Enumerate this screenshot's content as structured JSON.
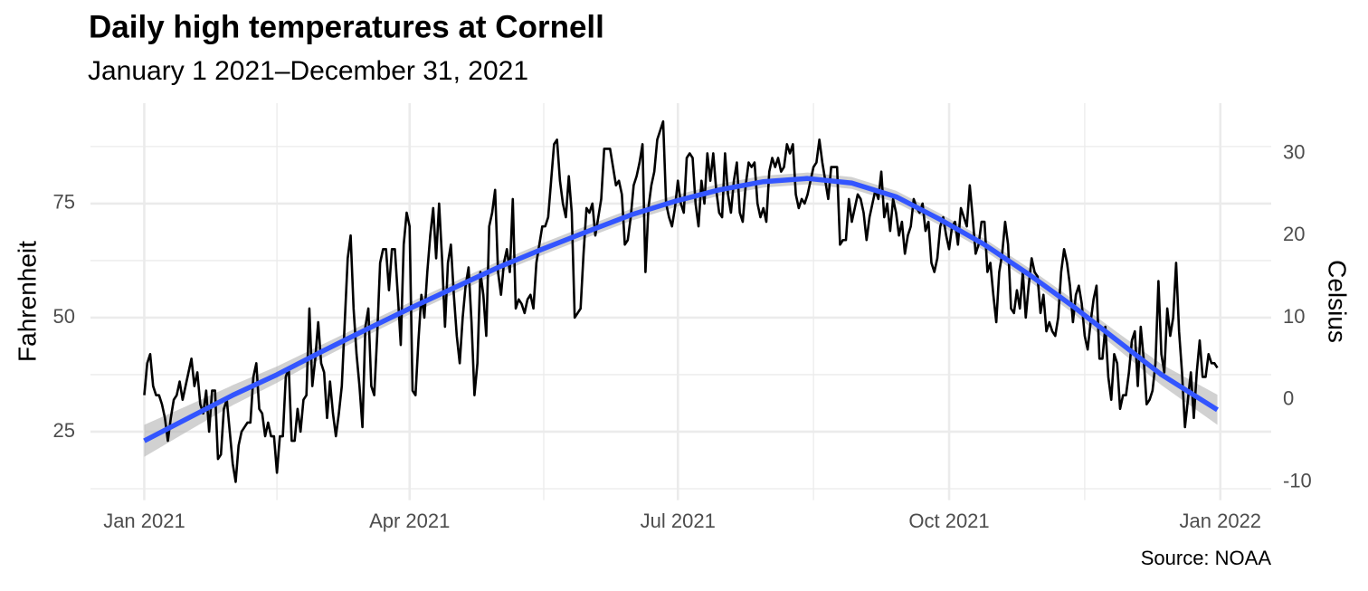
{
  "chart_data": {
    "type": "line",
    "title": "Daily high temperatures at Cornell",
    "subtitle": "January 1 2021–December 31, 2021",
    "caption": "Source: NOAA",
    "ylabel": "Fahrenheit",
    "y2label": "Celsius",
    "x": [
      0,
      1,
      2,
      3,
      4,
      5,
      6,
      7,
      8,
      9,
      10,
      11,
      12,
      13,
      14,
      15,
      16,
      17,
      18,
      19,
      20,
      21,
      22,
      23,
      24,
      25,
      26,
      27,
      28,
      29,
      30,
      31,
      32,
      33,
      34,
      35,
      36,
      37,
      38,
      39,
      40,
      41,
      42,
      43,
      44,
      45,
      46,
      47,
      48,
      49,
      50,
      51,
      52,
      53,
      54,
      55,
      56,
      57,
      58,
      59,
      60,
      61,
      62,
      63,
      64,
      65,
      66,
      67,
      68,
      69,
      70,
      71,
      72,
      73,
      74,
      75,
      76,
      77,
      78,
      79,
      80,
      81,
      82,
      83,
      84,
      85,
      86,
      87,
      88,
      89,
      90,
      91,
      92,
      93,
      94,
      95,
      96,
      97,
      98,
      99,
      100,
      101,
      102,
      103,
      104,
      105,
      106,
      107,
      108,
      109,
      110,
      111,
      112,
      113,
      114,
      115,
      116,
      117,
      118,
      119,
      120,
      121,
      122,
      123,
      124,
      125,
      126,
      127,
      128,
      129,
      130,
      131,
      132,
      133,
      134,
      135,
      136,
      137,
      138,
      139,
      140,
      141,
      142,
      143,
      144,
      145,
      146,
      147,
      148,
      149,
      150,
      151,
      152,
      153,
      154,
      155,
      156,
      157,
      158,
      159,
      160,
      161,
      162,
      163,
      164,
      165,
      166,
      167,
      168,
      169,
      170,
      171,
      172,
      173,
      174,
      175,
      176,
      177,
      178,
      179,
      180,
      181,
      182,
      183,
      184,
      185,
      186,
      187,
      188,
      189,
      190,
      191,
      192,
      193,
      194,
      195,
      196,
      197,
      198,
      199,
      200,
      201,
      202,
      203,
      204,
      205,
      206,
      207,
      208,
      209,
      210,
      211,
      212,
      213,
      214,
      215,
      216,
      217,
      218,
      219,
      220,
      221,
      222,
      223,
      224,
      225,
      226,
      227,
      228,
      229,
      230,
      231,
      232,
      233,
      234,
      235,
      236,
      237,
      238,
      239,
      240,
      241,
      242,
      243,
      244,
      245,
      246,
      247,
      248,
      249,
      250,
      251,
      252,
      253,
      254,
      255,
      256,
      257,
      258,
      259,
      260,
      261,
      262,
      263,
      264,
      265,
      266,
      267,
      268,
      269,
      270,
      271,
      272,
      273,
      274,
      275,
      276,
      277,
      278,
      279,
      280,
      281,
      282,
      283,
      284,
      285,
      286,
      287,
      288,
      289,
      290,
      291,
      292,
      293,
      294,
      295,
      296,
      297,
      298,
      299,
      300,
      301,
      302,
      303,
      304,
      305,
      306,
      307,
      308,
      309,
      310,
      311,
      312,
      313,
      314,
      315,
      316,
      317,
      318,
      319,
      320,
      321,
      322,
      323,
      324,
      325,
      326,
      327,
      328,
      329,
      330,
      331,
      332,
      333,
      334,
      335,
      336,
      337,
      338,
      339,
      340,
      341,
      342,
      343,
      344,
      345,
      346,
      347,
      348,
      349,
      350,
      351,
      352,
      353,
      354,
      355,
      356,
      357,
      358,
      359,
      360,
      361,
      362,
      363,
      364
    ],
    "series": [
      {
        "color": "#000000",
        "values": [
          33,
          40,
          42,
          35,
          33,
          33,
          31,
          28,
          23,
          28,
          32,
          33,
          36,
          32,
          35,
          38,
          41,
          35,
          38,
          31,
          29,
          34,
          25,
          34,
          34,
          19,
          20,
          30,
          32,
          25,
          18,
          14,
          22,
          25,
          26,
          27,
          27,
          37,
          40,
          30,
          29,
          24,
          27,
          24,
          24,
          16,
          24,
          24,
          37,
          39,
          23,
          23,
          30,
          25,
          32,
          33,
          52,
          35,
          41,
          49,
          40,
          38,
          28,
          36,
          29,
          24,
          29,
          35,
          49,
          63,
          68,
          52,
          42,
          35,
          26,
          48,
          52,
          35,
          33,
          46,
          62,
          65,
          65,
          56,
          65,
          65,
          55,
          44,
          66,
          73,
          70,
          34,
          33,
          45,
          55,
          50,
          60,
          68,
          74,
          63,
          75,
          63,
          48,
          62,
          66,
          55,
          46,
          40,
          50,
          57,
          61,
          49,
          33,
          40,
          60,
          55,
          46,
          70,
          73,
          78,
          60,
          55,
          62,
          65,
          60,
          76,
          52,
          54,
          53,
          51,
          54,
          55,
          52,
          62,
          66,
          70,
          70,
          72,
          80,
          88,
          89,
          80,
          75,
          72,
          81,
          73,
          50,
          51,
          52,
          64,
          74,
          73,
          75,
          68,
          72,
          76,
          87,
          87,
          87,
          83,
          79,
          80,
          77,
          66,
          67,
          72,
          79,
          81,
          84,
          88,
          60,
          74,
          79,
          82,
          89,
          91,
          93,
          75,
          72,
          70,
          74,
          80,
          75,
          73,
          85,
          86,
          85,
          75,
          70,
          80,
          75,
          86,
          80,
          86,
          78,
          73,
          72,
          86,
          77,
          73,
          80,
          84,
          73,
          71,
          79,
          84,
          83,
          84,
          75,
          72,
          74,
          71,
          82,
          85,
          83,
          85,
          82,
          83,
          88,
          86,
          88,
          77,
          74,
          76,
          75,
          77,
          80,
          83,
          84,
          89,
          84,
          80,
          76,
          83,
          83,
          83,
          66,
          67,
          67,
          76,
          71,
          74,
          77,
          76,
          73,
          67,
          72,
          75,
          78,
          76,
          82,
          72,
          75,
          69,
          76,
          73,
          68,
          71,
          64,
          68,
          70,
          76,
          74,
          73,
          75,
          69,
          71,
          62,
          60,
          63,
          70,
          72,
          68,
          65,
          70,
          71,
          66,
          74,
          72,
          70,
          79,
          72,
          64,
          66,
          71,
          71,
          60,
          62,
          55,
          49,
          60,
          64,
          71,
          66,
          52,
          51,
          56,
          52,
          60,
          50,
          57,
          63,
          60,
          59,
          51,
          55,
          47,
          49,
          47,
          46,
          50,
          60,
          65,
          62,
          57,
          49,
          55,
          57,
          53,
          46,
          43,
          49,
          54,
          57,
          41,
          41,
          48,
          37,
          32,
          42,
          40,
          30,
          33,
          33,
          38,
          45,
          47,
          35,
          48,
          41,
          31,
          32,
          34,
          40,
          58,
          42,
          38,
          52,
          46,
          50,
          62,
          47,
          38,
          26,
          32,
          38,
          28,
          38,
          45,
          37,
          37,
          42,
          40,
          40,
          39
        ]
      }
    ],
    "smooth": {
      "color": "#3355ff",
      "band_color": "#b3b3b3",
      "x": [
        0,
        15,
        30,
        45,
        60,
        75,
        90,
        105,
        120,
        135,
        150,
        165,
        180,
        195,
        210,
        225,
        240,
        255,
        270,
        285,
        300,
        315,
        330,
        345,
        364
      ],
      "values": [
        23,
        28,
        33,
        37.5,
        42.5,
        47.3,
        52,
        56.5,
        61,
        65,
        68.8,
        72.5,
        75.5,
        78,
        79.8,
        80.5,
        79.5,
        76.5,
        71.5,
        66,
        59.5,
        52.5,
        45,
        37.5,
        29.8
      ],
      "lower": [
        19.5,
        25.2,
        30.8,
        35.7,
        41,
        45.9,
        50.7,
        55.2,
        59.7,
        63.7,
        67.5,
        71.2,
        74.2,
        76.7,
        78.5,
        79.2,
        78.2,
        75.2,
        70.2,
        64.7,
        58.1,
        51,
        43.2,
        35.2,
        26.5
      ],
      "upper": [
        26.5,
        30.8,
        35.2,
        39.3,
        44,
        48.7,
        53.3,
        57.8,
        62.3,
        66.3,
        70.1,
        73.8,
        76.8,
        79.3,
        81.1,
        81.8,
        80.8,
        77.8,
        72.8,
        67.3,
        60.9,
        54,
        46.8,
        39.8,
        33.1
      ]
    },
    "xlim": [
      -18.25,
      382.25
    ],
    "xticks": [
      {
        "value": 0,
        "label": "Jan 2021"
      },
      {
        "value": 90,
        "label": "Apr 2021"
      },
      {
        "value": 181,
        "label": "Jul 2021"
      },
      {
        "value": 273,
        "label": "Oct 2021"
      },
      {
        "value": 365,
        "label": "Jan 2022"
      }
    ],
    "minor_xticks": [
      45,
      135.5,
      227,
      319
    ],
    "ylim": [
      10,
      97
    ],
    "yticks": [
      25,
      50,
      75
    ],
    "minor_yticks": [
      12.5,
      37.5,
      62.5,
      87.5
    ],
    "y2lim": [
      -12.22,
      36.11
    ],
    "y2ticks": [
      -10,
      0,
      10,
      20,
      30
    ],
    "grid": true
  }
}
